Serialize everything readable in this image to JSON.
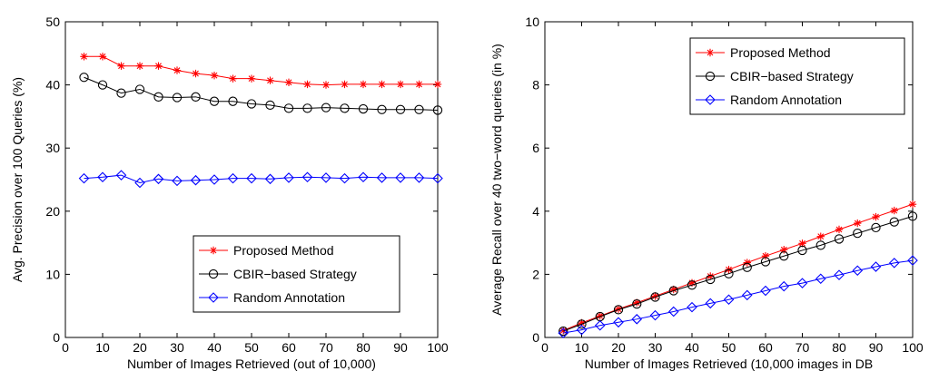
{
  "chart_data": [
    {
      "type": "line",
      "xlabel": "Number of Images Retrieved (out of 10,000)",
      "ylabel": "Avg. Precision over 100 Queries (%)",
      "xlim": [
        0,
        100
      ],
      "ylim": [
        0,
        50
      ],
      "xticks": [
        0,
        10,
        20,
        30,
        40,
        50,
        60,
        70,
        80,
        90,
        100
      ],
      "yticks": [
        0,
        10,
        20,
        30,
        40,
        50
      ],
      "grid": false,
      "legend_position": "bottom-right",
      "x": [
        5,
        10,
        15,
        20,
        25,
        30,
        35,
        40,
        45,
        50,
        55,
        60,
        65,
        70,
        75,
        80,
        85,
        90,
        95,
        100
      ],
      "series": [
        {
          "name": "Proposed Method",
          "color": "#ff0000",
          "marker": "asterisk",
          "values": [
            44.5,
            44.5,
            43.0,
            43.0,
            43.0,
            42.3,
            41.8,
            41.5,
            41.0,
            41.0,
            40.7,
            40.4,
            40.1,
            40.0,
            40.1,
            40.1,
            40.1,
            40.1,
            40.1,
            40.1
          ]
        },
        {
          "name": "CBIR−based Strategy",
          "color": "#000000",
          "marker": "circle",
          "values": [
            41.2,
            40.0,
            38.7,
            39.3,
            38.1,
            38.0,
            38.1,
            37.4,
            37.4,
            37.0,
            36.8,
            36.3,
            36.3,
            36.4,
            36.3,
            36.2,
            36.1,
            36.1,
            36.1,
            36.0
          ]
        },
        {
          "name": "Random Annotation",
          "color": "#0000ff",
          "marker": "diamond",
          "values": [
            25.2,
            25.4,
            25.7,
            24.5,
            25.1,
            24.8,
            24.9,
            25.0,
            25.2,
            25.2,
            25.1,
            25.3,
            25.4,
            25.3,
            25.2,
            25.4,
            25.3,
            25.3,
            25.3,
            25.2
          ]
        }
      ]
    },
    {
      "type": "line",
      "xlabel": "Number of Images Retrieved (10,000 images in DB",
      "ylabel": "Average Recall over 40 two−word queries (in %)",
      "xlim": [
        0,
        100
      ],
      "ylim": [
        0,
        10
      ],
      "xticks": [
        0,
        10,
        20,
        30,
        40,
        50,
        60,
        70,
        80,
        90,
        100
      ],
      "yticks": [
        0,
        2,
        4,
        6,
        8,
        10
      ],
      "grid": false,
      "legend_position": "top-right",
      "x": [
        5,
        10,
        15,
        20,
        25,
        30,
        35,
        40,
        45,
        50,
        55,
        60,
        65,
        70,
        75,
        80,
        85,
        90,
        95,
        100
      ],
      "series": [
        {
          "name": "Proposed Method",
          "color": "#ff0000",
          "marker": "asterisk",
          "values": [
            0.22,
            0.46,
            0.68,
            0.9,
            1.1,
            1.31,
            1.52,
            1.73,
            1.94,
            2.15,
            2.37,
            2.58,
            2.78,
            2.98,
            3.2,
            3.42,
            3.62,
            3.82,
            4.02,
            4.22
          ]
        },
        {
          "name": "CBIR−based Strategy",
          "color": "#000000",
          "marker": "circle",
          "values": [
            0.2,
            0.42,
            0.66,
            0.88,
            1.06,
            1.28,
            1.48,
            1.66,
            1.84,
            2.02,
            2.22,
            2.4,
            2.58,
            2.76,
            2.92,
            3.12,
            3.3,
            3.48,
            3.66,
            3.84
          ]
        },
        {
          "name": "Random Annotation",
          "color": "#0000ff",
          "marker": "diamond",
          "values": [
            0.14,
            0.24,
            0.38,
            0.48,
            0.58,
            0.7,
            0.82,
            0.96,
            1.08,
            1.2,
            1.34,
            1.48,
            1.62,
            1.72,
            1.86,
            1.98,
            2.12,
            2.24,
            2.36,
            2.44
          ]
        }
      ]
    }
  ]
}
